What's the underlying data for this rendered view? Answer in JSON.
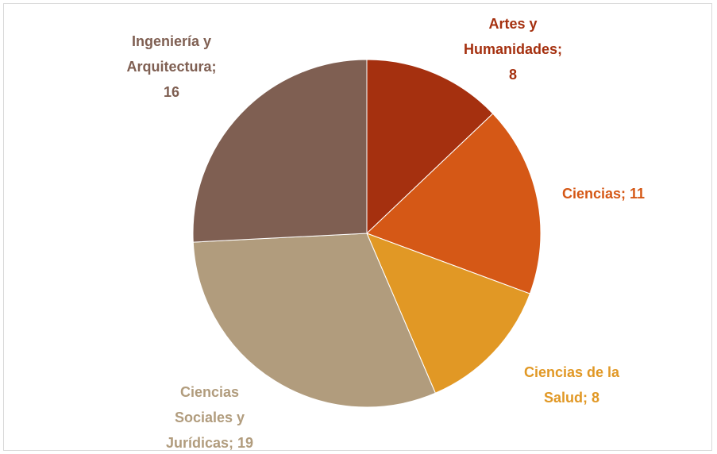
{
  "chart_data": {
    "type": "pie",
    "categories": [
      "Artes y Humanidades",
      "Ciencias",
      "Ciencias de la Salud",
      "Ciencias Sociales y Jurídicas",
      "Ingeniería y Arquitectura"
    ],
    "values": [
      8,
      11,
      8,
      19,
      16
    ],
    "value_labels": [
      "Artes y Humanidades; 8",
      "Ciencias; 11",
      "Ciencias de la Salud; 8",
      "Ciencias Sociales y Jurídicas; 19",
      "Ingeniería y Arquitectura; 16"
    ],
    "colors": [
      "#a5300f",
      "#d55816",
      "#e19825",
      "#b19c7d",
      "#7f5f52"
    ]
  }
}
